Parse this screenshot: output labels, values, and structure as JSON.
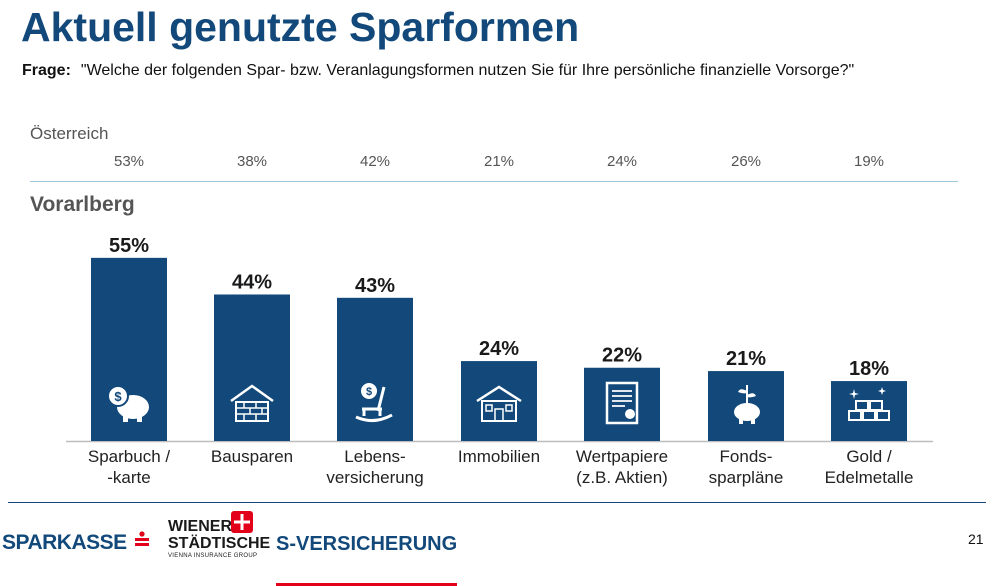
{
  "title": "Aktuell genutzte Sparformen",
  "question": {
    "label": "Frage:",
    "text": "\"Welche der folgenden Spar- bzw. Veranlagungsformen nutzen Sie für Ihre persönliche finanzielle Vorsorge?\""
  },
  "austria": {
    "label": "Österreich",
    "values": [
      "53%",
      "38%",
      "42%",
      "21%",
      "24%",
      "26%",
      "19%"
    ]
  },
  "region_label": "Vorarlberg",
  "colors": {
    "bar": "#12497a",
    "title": "#12497a",
    "accent_red": "#e2001a",
    "separator": "#9ec7db"
  },
  "chart_data": {
    "type": "bar",
    "categories": [
      "Sparbuch /\n-karte",
      "Bausparen",
      "Lebens-\nversicherung",
      "Immobilien",
      "Wertpapiere\n(z.B. Aktien)",
      "Fonds-\nsparpläne",
      "Gold /\nEdelmetalle"
    ],
    "values": [
      55,
      44,
      43,
      24,
      22,
      21,
      18
    ],
    "value_labels": [
      "55%",
      "44%",
      "43%",
      "24%",
      "22%",
      "21%",
      "18%"
    ],
    "icons": [
      "piggy-bank-dollar-icon",
      "house-brick-icon",
      "rocking-chair-icon",
      "house-icon",
      "certificate-icon",
      "piggy-bank-plant-icon",
      "gold-bars-icon"
    ],
    "ylim": [
      0,
      60
    ],
    "grid": false
  },
  "footer": {
    "sparkasse": "SPARKASSE",
    "wiener_line1": "WIENER",
    "wiener_line2": "STÄDTISCHE",
    "wiener_sub": "VIENNA INSURANCE GROUP",
    "s_versicherung": "S-VERSICHERUNG",
    "page_number": "21"
  }
}
